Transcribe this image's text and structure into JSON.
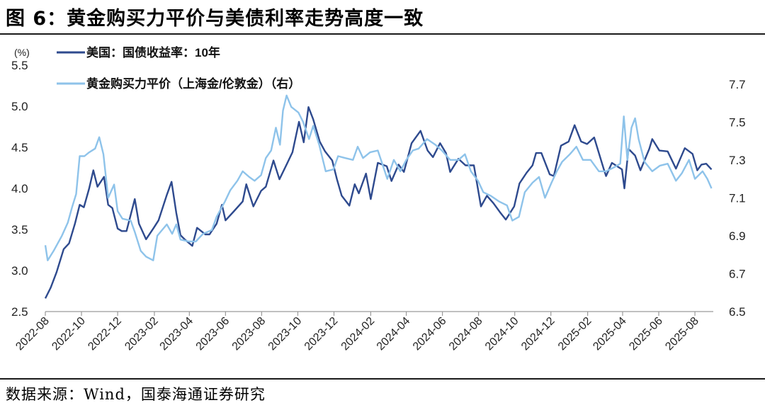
{
  "figure": {
    "title": "图 6：黄金购买力平价与美债利率走势高度一致",
    "source": "数据来源：Wind，国泰海通证券研究"
  },
  "chart_data": {
    "type": "line",
    "left_axis_unit": "(%)",
    "ylim_left": [
      2.5,
      5.5
    ],
    "yticks_left": [
      "2.5",
      "3.0",
      "3.5",
      "4.0",
      "4.5",
      "5.0",
      "5.5"
    ],
    "ylim_right": [
      6.5,
      7.8
    ],
    "yticks_right": [
      "6.5",
      "6.7",
      "6.9",
      "7.1",
      "7.3",
      "7.5",
      "7.7"
    ],
    "x_range": [
      "2022-08-01",
      "2025-09-01"
    ],
    "xticks": [
      "2022-08",
      "2022-10",
      "2022-12",
      "2023-02",
      "2023-04",
      "2023-06",
      "2023-08",
      "2023-10",
      "2023-12",
      "2024-02",
      "2024-04",
      "2024-06",
      "2024-08",
      "2024-10",
      "2024-12",
      "2025-02",
      "2025-04",
      "2025-06",
      "2025-08"
    ],
    "legend_position": "top-left",
    "grid": false,
    "series": [
      {
        "name": "美国：国债收益率：10年",
        "axis": "left",
        "color": "#2e4a8e",
        "points": [
          [
            "2022-08-01",
            2.66
          ],
          [
            "2022-08-10",
            2.79
          ],
          [
            "2022-08-20",
            2.98
          ],
          [
            "2022-09-01",
            3.26
          ],
          [
            "2022-09-10",
            3.33
          ],
          [
            "2022-09-20",
            3.57
          ],
          [
            "2022-09-28",
            3.8
          ],
          [
            "2022-10-05",
            3.77
          ],
          [
            "2022-10-14",
            4.0
          ],
          [
            "2022-10-21",
            4.22
          ],
          [
            "2022-10-28",
            4.02
          ],
          [
            "2022-11-08",
            4.14
          ],
          [
            "2022-11-15",
            3.8
          ],
          [
            "2022-11-22",
            3.76
          ],
          [
            "2022-12-01",
            3.51
          ],
          [
            "2022-12-08",
            3.48
          ],
          [
            "2022-12-16",
            3.48
          ],
          [
            "2022-12-30",
            3.87
          ],
          [
            "2023-01-06",
            3.57
          ],
          [
            "2023-01-18",
            3.38
          ],
          [
            "2023-01-31",
            3.52
          ],
          [
            "2023-02-08",
            3.61
          ],
          [
            "2023-02-22",
            3.92
          ],
          [
            "2023-03-02",
            4.08
          ],
          [
            "2023-03-10",
            3.7
          ],
          [
            "2023-03-17",
            3.43
          ],
          [
            "2023-03-24",
            3.38
          ],
          [
            "2023-04-06",
            3.3
          ],
          [
            "2023-04-14",
            3.52
          ],
          [
            "2023-04-28",
            3.44
          ],
          [
            "2023-05-05",
            3.44
          ],
          [
            "2023-05-17",
            3.57
          ],
          [
            "2023-05-26",
            3.8
          ],
          [
            "2023-06-01",
            3.61
          ],
          [
            "2023-06-15",
            3.72
          ],
          [
            "2023-06-30",
            3.84
          ],
          [
            "2023-07-06",
            4.05
          ],
          [
            "2023-07-18",
            3.78
          ],
          [
            "2023-07-31",
            3.97
          ],
          [
            "2023-08-08",
            4.02
          ],
          [
            "2023-08-21",
            4.34
          ],
          [
            "2023-08-31",
            4.11
          ],
          [
            "2023-09-12",
            4.29
          ],
          [
            "2023-09-22",
            4.44
          ],
          [
            "2023-10-03",
            4.81
          ],
          [
            "2023-10-11",
            4.56
          ],
          [
            "2023-10-19",
            4.99
          ],
          [
            "2023-10-27",
            4.84
          ],
          [
            "2023-11-07",
            4.57
          ],
          [
            "2023-11-16",
            4.45
          ],
          [
            "2023-11-28",
            4.34
          ],
          [
            "2023-12-06",
            4.11
          ],
          [
            "2023-12-14",
            3.91
          ],
          [
            "2023-12-27",
            3.79
          ],
          [
            "2024-01-05",
            4.05
          ],
          [
            "2024-01-12",
            3.94
          ],
          [
            "2024-01-24",
            4.18
          ],
          [
            "2024-02-01",
            3.87
          ],
          [
            "2024-02-13",
            4.31
          ],
          [
            "2024-02-28",
            4.27
          ],
          [
            "2024-03-07",
            4.09
          ],
          [
            "2024-03-19",
            4.29
          ],
          [
            "2024-03-28",
            4.2
          ],
          [
            "2024-04-10",
            4.55
          ],
          [
            "2024-04-25",
            4.7
          ],
          [
            "2024-05-07",
            4.46
          ],
          [
            "2024-05-16",
            4.38
          ],
          [
            "2024-05-28",
            4.55
          ],
          [
            "2024-06-07",
            4.43
          ],
          [
            "2024-06-14",
            4.2
          ],
          [
            "2024-06-28",
            4.36
          ],
          [
            "2024-07-10",
            4.28
          ],
          [
            "2024-07-24",
            4.28
          ],
          [
            "2024-08-05",
            3.78
          ],
          [
            "2024-08-15",
            3.91
          ],
          [
            "2024-08-26",
            3.82
          ],
          [
            "2024-09-06",
            3.71
          ],
          [
            "2024-09-16",
            3.62
          ],
          [
            "2024-09-30",
            3.78
          ],
          [
            "2024-10-09",
            4.06
          ],
          [
            "2024-10-21",
            4.19
          ],
          [
            "2024-10-31",
            4.28
          ],
          [
            "2024-11-06",
            4.43
          ],
          [
            "2024-11-15",
            4.43
          ],
          [
            "2024-11-29",
            4.17
          ],
          [
            "2024-12-06",
            4.15
          ],
          [
            "2024-12-18",
            4.52
          ],
          [
            "2024-12-31",
            4.57
          ],
          [
            "2025-01-10",
            4.77
          ],
          [
            "2025-01-21",
            4.57
          ],
          [
            "2025-01-31",
            4.54
          ],
          [
            "2025-02-12",
            4.62
          ],
          [
            "2025-02-28",
            4.24
          ],
          [
            "2025-03-04",
            4.15
          ],
          [
            "2025-03-14",
            4.31
          ],
          [
            "2025-03-31",
            4.23
          ],
          [
            "2025-04-04",
            4.0
          ],
          [
            "2025-04-11",
            4.48
          ],
          [
            "2025-04-22",
            4.4
          ],
          [
            "2025-05-01",
            4.22
          ],
          [
            "2025-05-16",
            4.48
          ],
          [
            "2025-05-21",
            4.6
          ],
          [
            "2025-06-02",
            4.46
          ],
          [
            "2025-06-16",
            4.45
          ],
          [
            "2025-06-30",
            4.24
          ],
          [
            "2025-07-15",
            4.49
          ],
          [
            "2025-07-28",
            4.42
          ],
          [
            "2025-08-05",
            4.22
          ],
          [
            "2025-08-12",
            4.29
          ],
          [
            "2025-08-20",
            4.3
          ],
          [
            "2025-08-29",
            4.23
          ]
        ]
      },
      {
        "name": "黄金购买力平价（上海金/伦敦金）（右）",
        "axis": "right",
        "color": "#8ec3ea",
        "points": [
          [
            "2022-08-01",
            6.85
          ],
          [
            "2022-08-05",
            6.77
          ],
          [
            "2022-08-15",
            6.82
          ],
          [
            "2022-08-29",
            6.9
          ],
          [
            "2022-09-08",
            6.97
          ],
          [
            "2022-09-15",
            7.05
          ],
          [
            "2022-09-22",
            7.12
          ],
          [
            "2022-09-28",
            7.32
          ],
          [
            "2022-10-06",
            7.32
          ],
          [
            "2022-10-14",
            7.34
          ],
          [
            "2022-10-24",
            7.36
          ],
          [
            "2022-10-31",
            7.42
          ],
          [
            "2022-11-07",
            7.33
          ],
          [
            "2022-11-15",
            7.1
          ],
          [
            "2022-11-25",
            7.17
          ],
          [
            "2022-12-01",
            7.03
          ],
          [
            "2022-12-09",
            6.99
          ],
          [
            "2022-12-23",
            6.98
          ],
          [
            "2022-12-30",
            6.92
          ],
          [
            "2023-01-09",
            6.82
          ],
          [
            "2023-01-18",
            6.79
          ],
          [
            "2023-01-30",
            6.77
          ],
          [
            "2023-02-06",
            6.9
          ],
          [
            "2023-02-22",
            6.96
          ],
          [
            "2023-03-03",
            6.91
          ],
          [
            "2023-03-10",
            6.96
          ],
          [
            "2023-03-17",
            6.88
          ],
          [
            "2023-03-31",
            6.87
          ],
          [
            "2023-04-12",
            6.87
          ],
          [
            "2023-04-24",
            6.91
          ],
          [
            "2023-05-09",
            6.93
          ],
          [
            "2023-05-17",
            7.0
          ],
          [
            "2023-05-31",
            7.08
          ],
          [
            "2023-06-09",
            7.14
          ],
          [
            "2023-06-21",
            7.19
          ],
          [
            "2023-06-30",
            7.24
          ],
          [
            "2023-07-11",
            7.21
          ],
          [
            "2023-07-20",
            7.19
          ],
          [
            "2023-07-31",
            7.22
          ],
          [
            "2023-08-08",
            7.31
          ],
          [
            "2023-08-17",
            7.35
          ],
          [
            "2023-08-25",
            7.47
          ],
          [
            "2023-09-01",
            7.38
          ],
          [
            "2023-09-06",
            7.56
          ],
          [
            "2023-09-12",
            7.64
          ],
          [
            "2023-09-20",
            7.58
          ],
          [
            "2023-10-02",
            7.55
          ],
          [
            "2023-10-10",
            7.5
          ],
          [
            "2023-10-20",
            7.41
          ],
          [
            "2023-10-27",
            7.48
          ],
          [
            "2023-11-06",
            7.38
          ],
          [
            "2023-11-17",
            7.24
          ],
          [
            "2023-11-30",
            7.25
          ],
          [
            "2023-12-08",
            7.32
          ],
          [
            "2023-12-20",
            7.31
          ],
          [
            "2024-01-02",
            7.3
          ],
          [
            "2024-01-10",
            7.37
          ],
          [
            "2024-01-19",
            7.31
          ],
          [
            "2024-01-31",
            7.34
          ],
          [
            "2024-02-13",
            7.35
          ],
          [
            "2024-02-29",
            7.2
          ],
          [
            "2024-03-11",
            7.3
          ],
          [
            "2024-03-22",
            7.24
          ],
          [
            "2024-04-01",
            7.3
          ],
          [
            "2024-04-12",
            7.35
          ],
          [
            "2024-04-22",
            7.36
          ],
          [
            "2024-05-06",
            7.41
          ],
          [
            "2024-05-20",
            7.38
          ],
          [
            "2024-05-31",
            7.35
          ],
          [
            "2024-06-14",
            7.3
          ],
          [
            "2024-06-28",
            7.3
          ],
          [
            "2024-07-09",
            7.33
          ],
          [
            "2024-07-19",
            7.24
          ],
          [
            "2024-07-31",
            7.19
          ],
          [
            "2024-08-09",
            7.13
          ],
          [
            "2024-08-22",
            7.11
          ],
          [
            "2024-09-05",
            7.08
          ],
          [
            "2024-09-18",
            7.06
          ],
          [
            "2024-09-27",
            6.98
          ],
          [
            "2024-10-08",
            7.0
          ],
          [
            "2024-10-18",
            7.13
          ],
          [
            "2024-10-31",
            7.18
          ],
          [
            "2024-11-11",
            7.21
          ],
          [
            "2024-11-21",
            7.1
          ],
          [
            "2024-12-02",
            7.18
          ],
          [
            "2024-12-11",
            7.24
          ],
          [
            "2024-12-20",
            7.29
          ],
          [
            "2025-01-02",
            7.33
          ],
          [
            "2025-01-13",
            7.37
          ],
          [
            "2025-01-24",
            7.3
          ],
          [
            "2025-02-06",
            7.3
          ],
          [
            "2025-02-20",
            7.24
          ],
          [
            "2025-03-04",
            7.24
          ],
          [
            "2025-03-17",
            7.26
          ],
          [
            "2025-03-28",
            7.28
          ],
          [
            "2025-04-03",
            7.53
          ],
          [
            "2025-04-09",
            7.3
          ],
          [
            "2025-04-16",
            7.47
          ],
          [
            "2025-04-22",
            7.52
          ],
          [
            "2025-04-28",
            7.41
          ],
          [
            "2025-05-08",
            7.29
          ],
          [
            "2025-05-21",
            7.24
          ],
          [
            "2025-06-03",
            7.27
          ],
          [
            "2025-06-16",
            7.28
          ],
          [
            "2025-06-30",
            7.19
          ],
          [
            "2025-07-10",
            7.23
          ],
          [
            "2025-07-22",
            7.3
          ],
          [
            "2025-08-01",
            7.2
          ],
          [
            "2025-08-14",
            7.24
          ],
          [
            "2025-08-22",
            7.2
          ],
          [
            "2025-08-29",
            7.15
          ]
        ]
      }
    ]
  }
}
